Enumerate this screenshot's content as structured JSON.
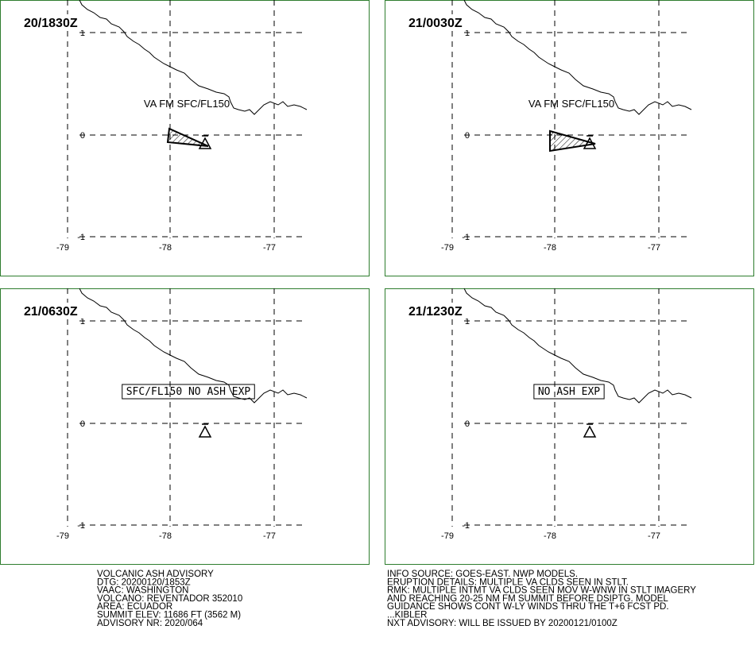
{
  "panels": [
    {
      "time": "20/1830Z",
      "annotation": "VA FM SFC/FL150",
      "annotation_boxed": false
    },
    {
      "time": "21/0030Z",
      "annotation": "VA FM SFC/FL150",
      "annotation_boxed": false
    },
    {
      "time": "21/0630Z",
      "annotation": "SFC/FL150 NO ASH EXP",
      "annotation_boxed": true
    },
    {
      "time": "21/1230Z",
      "annotation": "NO ASH EXP",
      "annotation_boxed": true
    }
  ],
  "lat_labels": [
    "1",
    "0",
    "-1"
  ],
  "lon_labels": [
    "-79",
    "-78",
    "-77"
  ],
  "advisory_left": [
    "VOLCANIC ASH ADVISORY",
    "DTG: 20200120/1853Z",
    "VAAC: WASHINGTON",
    "VOLCANO: REVENTADOR 352010",
    "AREA: ECUADOR",
    "SUMMIT ELEV: 11686 FT (3562 M)",
    "ADVISORY NR: 2020/064"
  ],
  "advisory_right": [
    "INFO SOURCE: GOES-EAST. NWP MODELS.",
    "ERUPTION DETAILS: MULTIPLE VA CLDS SEEN IN STLT.",
    "RMK: MULTIPLE INTMT VA CLDS SEEN MOV W-WNW IN STLT IMAGERY",
    "AND REACHING 20-25 NM FM SUMMIT BEFORE DSIPTG. MODEL",
    "GUIDANCE SHOWS CONT W-LY WINDS THRU THE T+6 FCST PD.",
    "...KIBLER",
    "NXT ADVISORY: WILL BE ISSUED BY 20200121/0100Z"
  ]
}
